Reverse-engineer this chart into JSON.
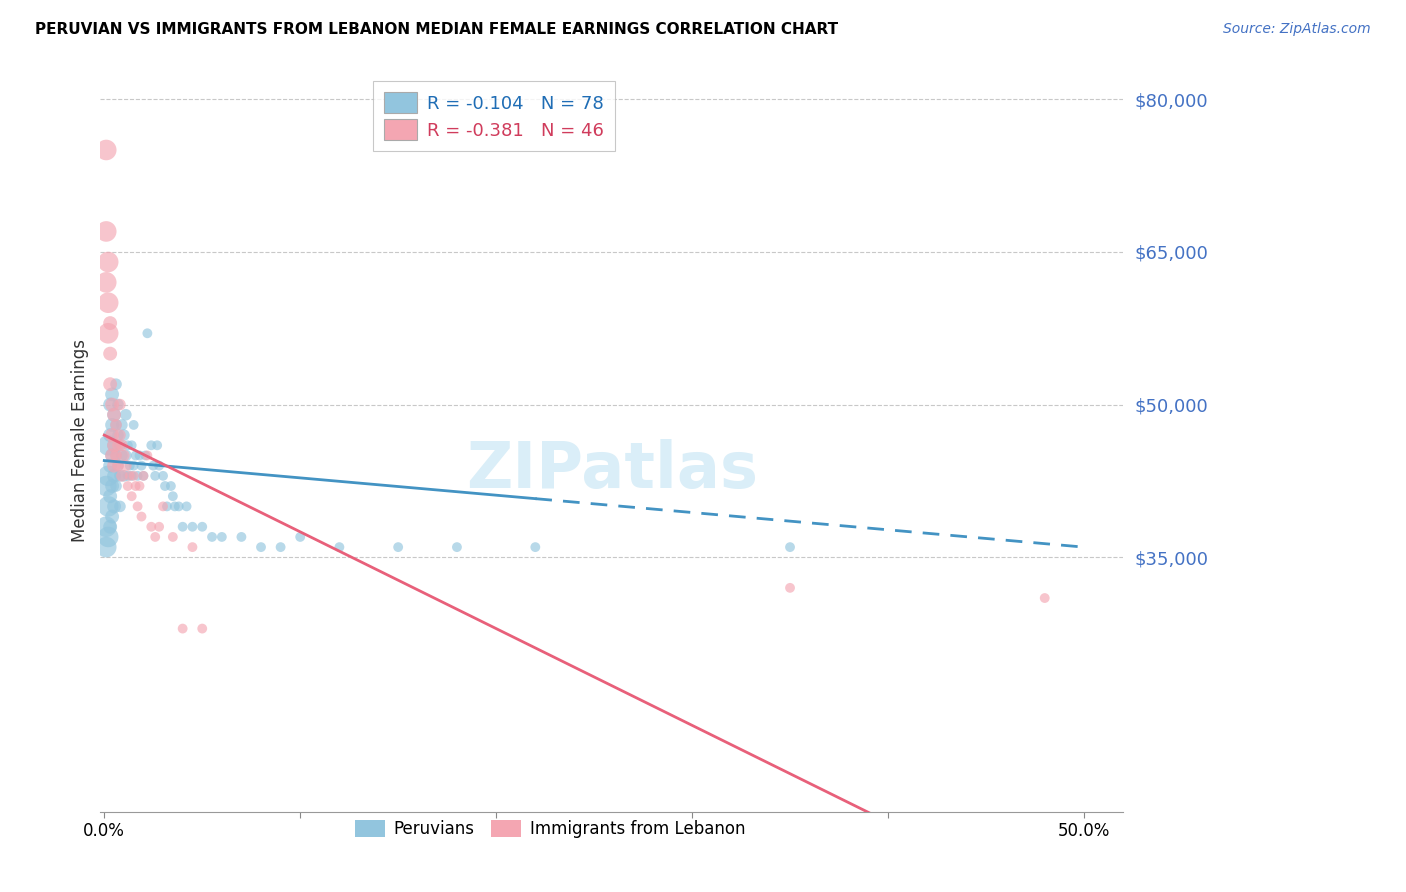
{
  "title": "PERUVIAN VS IMMIGRANTS FROM LEBANON MEDIAN FEMALE EARNINGS CORRELATION CHART",
  "source": "Source: ZipAtlas.com",
  "ylabel": "Median Female Earnings",
  "y_min": 10000,
  "y_max": 83000,
  "x_min": -0.002,
  "x_max": 0.52,
  "ytick_vals": [
    35000,
    50000,
    65000,
    80000
  ],
  "ytick_labels": [
    "$35,000",
    "$50,000",
    "$65,000",
    "$80,000"
  ],
  "blue_color": "#92c5de",
  "pink_color": "#f4a6b2",
  "trend_blue": "#4393c3",
  "trend_pink": "#e8607a",
  "watermark_color": "#daeef8",
  "peruvians_x": [
    0.001,
    0.001,
    0.001,
    0.002,
    0.002,
    0.002,
    0.002,
    0.003,
    0.003,
    0.003,
    0.003,
    0.003,
    0.004,
    0.004,
    0.004,
    0.004,
    0.004,
    0.005,
    0.005,
    0.005,
    0.005,
    0.006,
    0.006,
    0.006,
    0.006,
    0.007,
    0.007,
    0.007,
    0.008,
    0.008,
    0.008,
    0.009,
    0.009,
    0.01,
    0.01,
    0.011,
    0.011,
    0.012,
    0.012,
    0.013,
    0.014,
    0.014,
    0.015,
    0.015,
    0.016,
    0.017,
    0.018,
    0.019,
    0.02,
    0.021,
    0.022,
    0.024,
    0.025,
    0.026,
    0.027,
    0.028,
    0.03,
    0.031,
    0.032,
    0.034,
    0.035,
    0.036,
    0.038,
    0.04,
    0.042,
    0.045,
    0.05,
    0.055,
    0.06,
    0.07,
    0.08,
    0.09,
    0.1,
    0.12,
    0.15,
    0.18,
    0.22,
    0.35
  ],
  "peruvians_y": [
    42000,
    38000,
    36000,
    46000,
    43000,
    40000,
    37000,
    50000,
    47000,
    44000,
    41000,
    38000,
    51000,
    48000,
    45000,
    42000,
    39000,
    49000,
    46000,
    43000,
    40000,
    52000,
    48000,
    45000,
    42000,
    50000,
    47000,
    44000,
    46000,
    43000,
    40000,
    48000,
    45000,
    47000,
    43000,
    49000,
    45000,
    46000,
    43000,
    44000,
    46000,
    43000,
    48000,
    44000,
    45000,
    43000,
    45000,
    44000,
    43000,
    45000,
    57000,
    46000,
    44000,
    43000,
    46000,
    44000,
    43000,
    42000,
    40000,
    42000,
    41000,
    40000,
    40000,
    38000,
    40000,
    38000,
    38000,
    37000,
    37000,
    37000,
    36000,
    36000,
    37000,
    36000,
    36000,
    36000,
    36000,
    36000
  ],
  "lebanon_x": [
    0.001,
    0.001,
    0.001,
    0.002,
    0.002,
    0.002,
    0.003,
    0.003,
    0.003,
    0.004,
    0.004,
    0.004,
    0.005,
    0.005,
    0.005,
    0.006,
    0.006,
    0.007,
    0.007,
    0.008,
    0.008,
    0.009,
    0.009,
    0.01,
    0.011,
    0.012,
    0.013,
    0.014,
    0.015,
    0.016,
    0.017,
    0.018,
    0.019,
    0.02,
    0.022,
    0.024,
    0.026,
    0.028,
    0.03,
    0.035,
    0.04,
    0.045,
    0.05,
    0.35,
    0.48
  ],
  "lebanon_y": [
    75000,
    67000,
    62000,
    64000,
    60000,
    57000,
    58000,
    55000,
    52000,
    50000,
    47000,
    45000,
    49000,
    46000,
    44000,
    48000,
    45000,
    46000,
    44000,
    50000,
    47000,
    46000,
    43000,
    45000,
    44000,
    42000,
    43000,
    41000,
    43000,
    42000,
    40000,
    42000,
    39000,
    43000,
    45000,
    38000,
    37000,
    38000,
    40000,
    37000,
    28000,
    36000,
    28000,
    32000,
    31000
  ],
  "blue_intercept": 44500,
  "blue_slope": -17000,
  "pink_intercept": 47000,
  "pink_slope": -95000
}
